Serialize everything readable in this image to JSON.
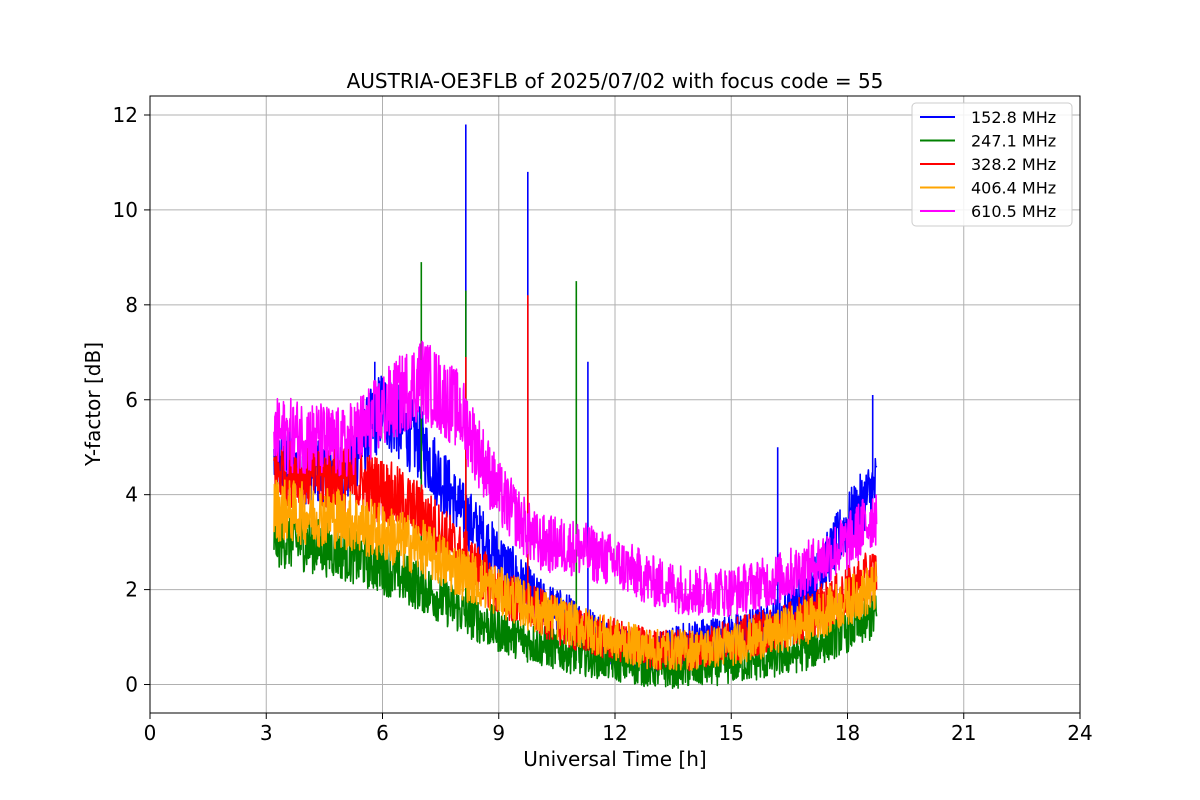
{
  "chart_data": {
    "type": "line",
    "title": "AUSTRIA-OE3FLB of 2025/07/02 with focus code = 55",
    "xlabel": "Universal Time [h]",
    "ylabel": "Y-factor [dB]",
    "xlim": [
      0,
      24
    ],
    "ylim": [
      -0.6,
      12.4
    ],
    "xticks": [
      0,
      3,
      6,
      9,
      12,
      15,
      18,
      21,
      24
    ],
    "yticks": [
      0,
      2,
      4,
      6,
      8,
      10,
      12
    ],
    "grid": true,
    "legend_position": "top-right",
    "x": [
      3.2,
      4.0,
      5.0,
      6.0,
      7.0,
      8.0,
      9.0,
      10.0,
      11.0,
      12.0,
      13.0,
      14.0,
      15.0,
      16.0,
      17.0,
      18.0,
      18.75
    ],
    "series": [
      {
        "name": "152.8 MHz",
        "color": "#0000ff",
        "values": [
          4.5,
          4.3,
          4.2,
          5.6,
          4.8,
          3.5,
          2.5,
          1.6,
          1.2,
          0.7,
          0.5,
          0.8,
          0.9,
          1.1,
          1.8,
          3.2,
          4.0
        ],
        "spikes": [
          [
            8.15,
            11.8
          ],
          [
            9.75,
            10.8
          ],
          [
            11.3,
            6.8
          ],
          [
            16.2,
            5.0
          ],
          [
            18.65,
            6.1
          ],
          [
            5.8,
            6.8
          ]
        ]
      },
      {
        "name": "247.1 MHz",
        "color": "#008000",
        "values": [
          2.9,
          2.8,
          2.6,
          2.3,
          1.9,
          1.4,
          1.0,
          0.7,
          0.5,
          0.35,
          0.2,
          0.2,
          0.3,
          0.4,
          0.6,
          1.0,
          1.3
        ],
        "spikes": [
          [
            7.0,
            8.9
          ],
          [
            8.15,
            8.3
          ],
          [
            11.0,
            8.5
          ]
        ]
      },
      {
        "name": "328.2 MHz",
        "color": "#ff0000",
        "values": [
          4.3,
          4.2,
          4.1,
          3.9,
          3.4,
          2.6,
          1.8,
          1.4,
          1.0,
          0.8,
          0.6,
          0.6,
          0.8,
          1.0,
          1.3,
          1.8,
          2.2
        ],
        "spikes": [
          [
            8.15,
            6.9
          ],
          [
            9.75,
            8.2
          ]
        ]
      },
      {
        "name": "406.4 MHz",
        "color": "#ffa500",
        "values": [
          3.5,
          3.4,
          3.3,
          3.0,
          2.7,
          2.2,
          1.8,
          1.4,
          1.1,
          0.8,
          0.6,
          0.6,
          0.7,
          0.9,
          1.2,
          1.6,
          1.9
        ],
        "spikes": []
      },
      {
        "name": "610.5 MHz",
        "color": "#ff00ff",
        "values": [
          5.0,
          5.0,
          4.8,
          5.5,
          6.2,
          5.5,
          3.8,
          2.8,
          2.7,
          2.4,
          2.0,
          1.8,
          1.8,
          2.0,
          2.3,
          2.8,
          3.4
        ],
        "spikes": [
          [
            6.6,
            6.8
          ]
        ]
      }
    ]
  }
}
